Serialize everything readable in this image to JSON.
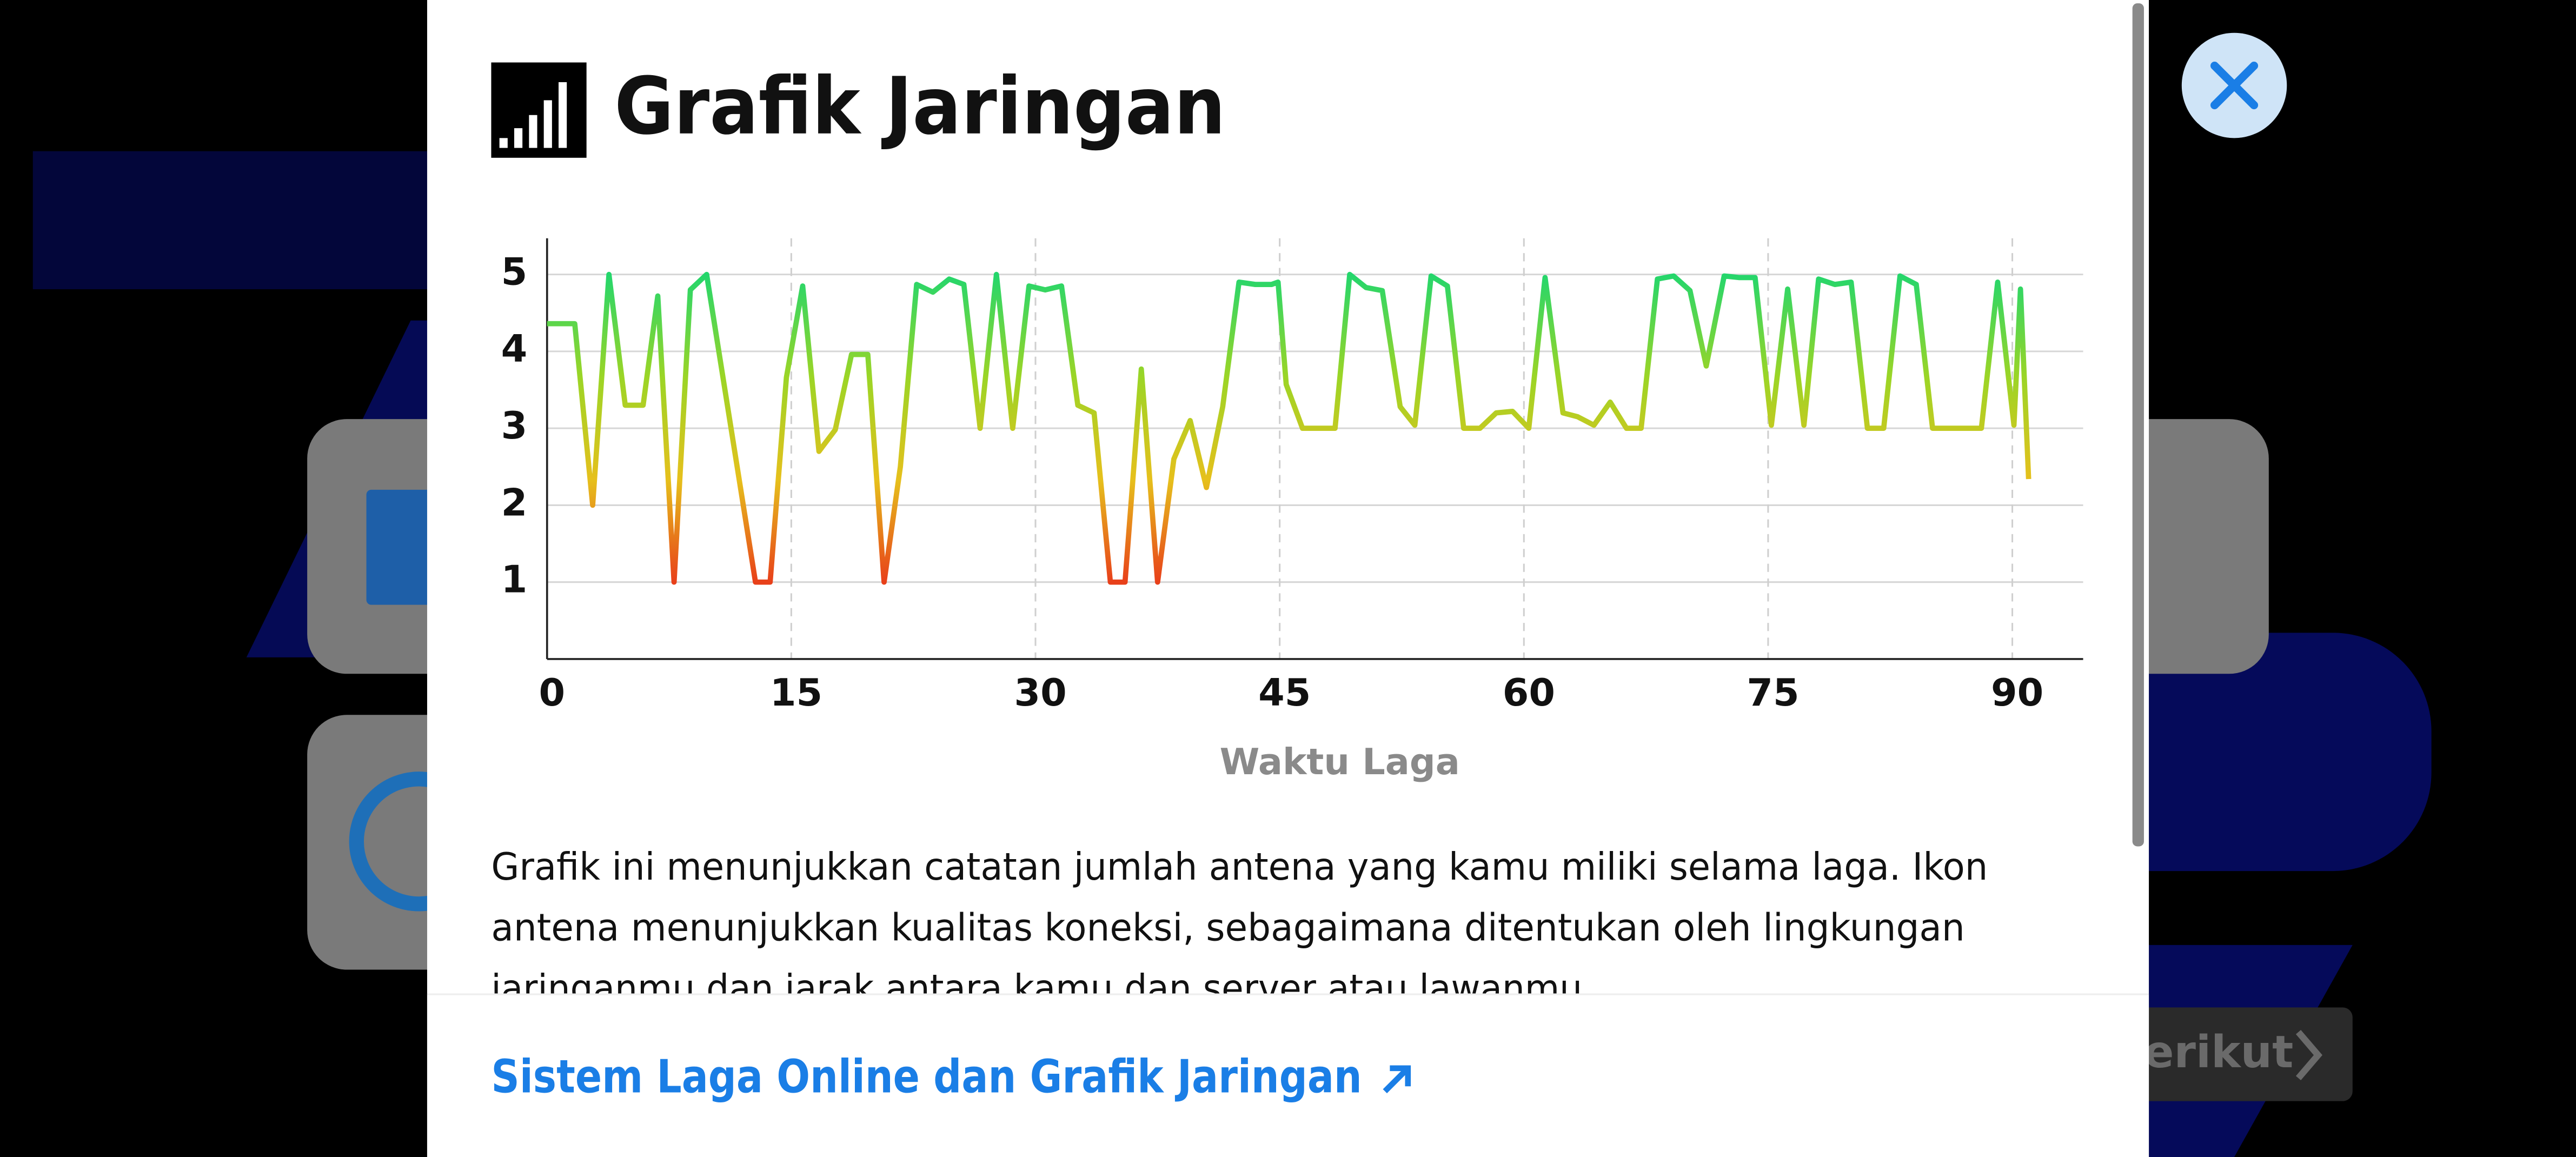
{
  "header": {
    "title": "Grafik Jaringan"
  },
  "chart_data": {
    "type": "line",
    "xlabel": "Waktu Laga",
    "x": [
      0,
      1.7,
      2.8,
      3.8,
      4.8,
      5.9,
      6.8,
      7.8,
      8.8,
      9.8,
      12.8,
      13.7,
      14.7,
      15.7,
      16.7,
      17.7,
      18.7,
      19.7,
      20.7,
      21.7,
      22.7,
      23.7,
      24.7,
      25.6,
      26.6,
      27.6,
      28.6,
      29.6,
      30.6,
      31.6,
      32.6,
      33.6,
      34.6,
      35.5,
      36.5,
      37.5,
      38.5,
      39.5,
      40.5,
      41.5,
      42.5,
      43.5,
      44.5,
      44.9,
      45.4,
      46.4,
      47.4,
      48.4,
      49.3,
      50.3,
      51.3,
      52.4,
      53.3,
      54.3,
      55.3,
      56.3,
      57.3,
      58.3,
      59.3,
      60.3,
      61.3,
      62.4,
      63.3,
      64.3,
      65.3,
      66.3,
      67.2,
      68.2,
      69.2,
      70.2,
      71.2,
      72.3,
      73.2,
      74.2,
      75.2,
      76.2,
      77.2,
      78.1,
      79.1,
      80.1,
      81.1,
      82.1,
      83.1,
      84.1,
      85.1,
      86.1,
      87.1,
      88.1,
      89.1,
      90.1,
      90.5,
      91.0
    ],
    "series": [
      {
        "values": [
          4.36,
          4.36,
          2.0,
          5.0,
          3.3,
          3.3,
          4.72,
          1.0,
          4.8,
          5.0,
          1.0,
          1.0,
          3.66,
          4.85,
          2.7,
          2.98,
          3.96,
          3.96,
          1.0,
          2.5,
          4.87,
          4.77,
          4.94,
          4.87,
          3.0,
          5.0,
          3.0,
          4.85,
          4.8,
          4.85,
          3.3,
          3.2,
          1.0,
          1.0,
          3.77,
          1.0,
          2.6,
          3.1,
          2.23,
          3.28,
          4.9,
          4.87,
          4.87,
          4.9,
          3.57,
          3.0,
          3.0,
          3.0,
          5.0,
          4.83,
          4.79,
          3.28,
          3.04,
          4.98,
          4.85,
          3.0,
          3.0,
          3.2,
          3.22,
          3.0,
          4.96,
          3.2,
          3.15,
          3.04,
          3.34,
          3.0,
          3.0,
          4.94,
          4.98,
          4.79,
          3.81,
          4.98,
          4.96,
          4.96,
          3.04,
          4.81,
          3.04,
          4.94,
          4.87,
          4.9,
          3.0,
          3.0,
          4.98,
          4.87,
          3.0,
          3.0,
          3.0,
          3.0,
          4.9,
          3.04,
          4.81,
          2.34
        ]
      }
    ],
    "xlim": [
      0,
      94.35
    ],
    "ylim": [
      0,
      5.47
    ],
    "xticks": [
      0,
      15,
      30,
      45,
      60,
      75,
      90
    ],
    "yticks": [
      1,
      2,
      3,
      4,
      5
    ],
    "grid": true,
    "colors": [
      "#e8401a",
      "#e6c01c",
      "#9bd526",
      "#24d66c"
    ]
  },
  "description": [
    "Grafik ini menunjukkan catatan jumlah antena yang kamu miliki selama laga. Ikon",
    "antena menunjukkan kualitas koneksi, sebagaimana ditentukan oleh lingkungan",
    "jaringanmu dan jarak antara kamu dan server atau lawanmu."
  ],
  "link": {
    "text": "Sistem Laga Online dan Grafik Jaringan"
  },
  "background": {
    "button": "erikut"
  }
}
